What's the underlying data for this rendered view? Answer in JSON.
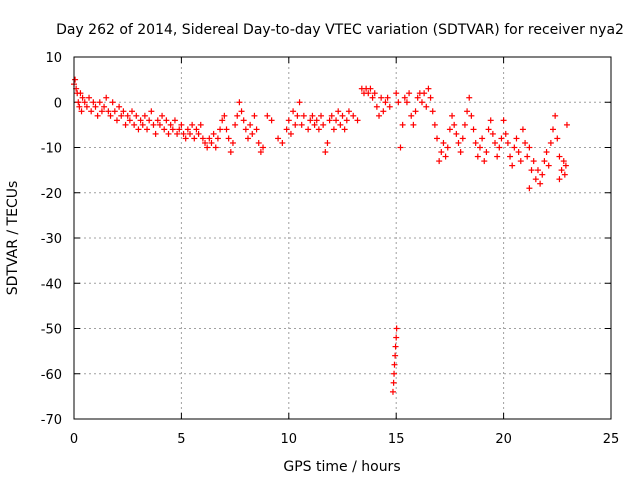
{
  "chart_data": {
    "type": "scatter",
    "title": "Day 262 of 2014, Sidereal Day-to-day VTEC variation (SDTVAR) for receiver nya2",
    "xlabel": "GPS time / hours",
    "ylabel": "SDTVAR / TECUs",
    "xlim": [
      0,
      25
    ],
    "ylim": [
      -70,
      10
    ],
    "xticks": [
      0,
      5,
      10,
      15,
      20,
      25
    ],
    "yticks": [
      10,
      0,
      -10,
      -20,
      -30,
      -40,
      -50,
      -60,
      -70
    ],
    "grid": true,
    "marker": "plus",
    "color": "#ff0000",
    "series": [
      {
        "name": "SDTVAR",
        "points": [
          [
            0.0,
            4
          ],
          [
            0.05,
            5
          ],
          [
            0.1,
            3
          ],
          [
            0.15,
            2
          ],
          [
            0.2,
            0
          ],
          [
            0.25,
            -1
          ],
          [
            0.3,
            2
          ],
          [
            0.35,
            -2
          ],
          [
            0.4,
            1
          ],
          [
            0.5,
            0
          ],
          [
            0.6,
            -1
          ],
          [
            0.7,
            1
          ],
          [
            0.8,
            -2
          ],
          [
            0.9,
            0
          ],
          [
            1.0,
            -1
          ],
          [
            1.1,
            -3
          ],
          [
            1.2,
            0
          ],
          [
            1.3,
            -2
          ],
          [
            1.4,
            -1
          ],
          [
            1.5,
            1
          ],
          [
            1.6,
            -2
          ],
          [
            1.7,
            -3
          ],
          [
            1.8,
            0
          ],
          [
            1.9,
            -2
          ],
          [
            2.0,
            -4
          ],
          [
            2.1,
            -1
          ],
          [
            2.2,
            -3
          ],
          [
            2.3,
            -2
          ],
          [
            2.4,
            -5
          ],
          [
            2.5,
            -3
          ],
          [
            2.6,
            -4
          ],
          [
            2.7,
            -2
          ],
          [
            2.8,
            -5
          ],
          [
            2.9,
            -3
          ],
          [
            3.0,
            -6
          ],
          [
            3.1,
            -4
          ],
          [
            3.2,
            -5
          ],
          [
            3.3,
            -3
          ],
          [
            3.4,
            -6
          ],
          [
            3.5,
            -4
          ],
          [
            3.6,
            -2
          ],
          [
            3.7,
            -5
          ],
          [
            3.8,
            -7
          ],
          [
            3.9,
            -4
          ],
          [
            4.0,
            -5
          ],
          [
            4.1,
            -3
          ],
          [
            4.2,
            -6
          ],
          [
            4.3,
            -4
          ],
          [
            4.4,
            -7
          ],
          [
            4.5,
            -5
          ],
          [
            4.6,
            -6
          ],
          [
            4.7,
            -4
          ],
          [
            4.8,
            -7
          ],
          [
            4.9,
            -6
          ],
          [
            5.0,
            -5
          ],
          [
            5.1,
            -7
          ],
          [
            5.2,
            -8
          ],
          [
            5.3,
            -6
          ],
          [
            5.4,
            -7
          ],
          [
            5.5,
            -5
          ],
          [
            5.6,
            -8
          ],
          [
            5.7,
            -6
          ],
          [
            5.8,
            -7
          ],
          [
            5.9,
            -5
          ],
          [
            6.0,
            -8
          ],
          [
            6.1,
            -9
          ],
          [
            6.2,
            -10
          ],
          [
            6.3,
            -8
          ],
          [
            6.4,
            -9
          ],
          [
            6.5,
            -7
          ],
          [
            6.6,
            -10
          ],
          [
            6.7,
            -8
          ],
          [
            6.8,
            -6
          ],
          [
            6.9,
            -4
          ],
          [
            7.0,
            -3
          ],
          [
            7.1,
            -6
          ],
          [
            7.2,
            -8
          ],
          [
            7.3,
            -11
          ],
          [
            7.4,
            -9
          ],
          [
            7.5,
            -5
          ],
          [
            7.6,
            -3
          ],
          [
            7.7,
            0
          ],
          [
            7.8,
            -2
          ],
          [
            7.9,
            -4
          ],
          [
            8.0,
            -6
          ],
          [
            8.1,
            -8
          ],
          [
            8.2,
            -5
          ],
          [
            8.3,
            -7
          ],
          [
            8.4,
            -3
          ],
          [
            8.5,
            -6
          ],
          [
            8.6,
            -9
          ],
          [
            8.7,
            -11
          ],
          [
            8.8,
            -10
          ],
          [
            9.0,
            -3
          ],
          [
            9.2,
            -4
          ],
          [
            9.5,
            -8
          ],
          [
            9.7,
            -9
          ],
          [
            9.9,
            -6
          ],
          [
            10.0,
            -4
          ],
          [
            10.1,
            -7
          ],
          [
            10.2,
            -2
          ],
          [
            10.3,
            -5
          ],
          [
            10.4,
            -3
          ],
          [
            10.5,
            0
          ],
          [
            10.6,
            -5
          ],
          [
            10.7,
            -3
          ],
          [
            10.9,
            -6
          ],
          [
            11.0,
            -4
          ],
          [
            11.1,
            -3
          ],
          [
            11.2,
            -5
          ],
          [
            11.3,
            -4
          ],
          [
            11.4,
            -6
          ],
          [
            11.5,
            -3
          ],
          [
            11.6,
            -5
          ],
          [
            11.7,
            -11
          ],
          [
            11.8,
            -9
          ],
          [
            11.9,
            -4
          ],
          [
            12.0,
            -3
          ],
          [
            12.1,
            -6
          ],
          [
            12.2,
            -4
          ],
          [
            12.3,
            -2
          ],
          [
            12.4,
            -5
          ],
          [
            12.5,
            -3
          ],
          [
            12.6,
            -6
          ],
          [
            12.7,
            -4
          ],
          [
            12.8,
            -2
          ],
          [
            13.0,
            -3
          ],
          [
            13.2,
            -4
          ],
          [
            13.4,
            3
          ],
          [
            13.5,
            2
          ],
          [
            13.6,
            3
          ],
          [
            13.7,
            2
          ],
          [
            13.8,
            3
          ],
          [
            13.9,
            1
          ],
          [
            14.0,
            2
          ],
          [
            14.1,
            -1
          ],
          [
            14.2,
            -3
          ],
          [
            14.3,
            1
          ],
          [
            14.4,
            -2
          ],
          [
            14.5,
            0
          ],
          [
            14.6,
            1
          ],
          [
            14.7,
            -1
          ],
          [
            14.85,
            -64
          ],
          [
            14.88,
            -62
          ],
          [
            14.9,
            -60
          ],
          [
            14.92,
            -58
          ],
          [
            14.95,
            -56
          ],
          [
            14.97,
            -54
          ],
          [
            15.0,
            -52
          ],
          [
            15.02,
            -50
          ],
          [
            15.0,
            2
          ],
          [
            15.1,
            0
          ],
          [
            15.2,
            -10
          ],
          [
            15.3,
            -5
          ],
          [
            15.4,
            1
          ],
          [
            15.5,
            0
          ],
          [
            15.6,
            2
          ],
          [
            15.7,
            -3
          ],
          [
            15.8,
            -5
          ],
          [
            15.9,
            -2
          ],
          [
            16.0,
            1
          ],
          [
            16.1,
            2
          ],
          [
            16.2,
            0
          ],
          [
            16.3,
            2
          ],
          [
            16.4,
            -1
          ],
          [
            16.5,
            3
          ],
          [
            16.6,
            1
          ],
          [
            16.7,
            -2
          ],
          [
            16.8,
            -5
          ],
          [
            16.9,
            -8
          ],
          [
            17.0,
            -13
          ],
          [
            17.1,
            -11
          ],
          [
            17.2,
            -9
          ],
          [
            17.3,
            -12
          ],
          [
            17.4,
            -10
          ],
          [
            17.5,
            -6
          ],
          [
            17.6,
            -3
          ],
          [
            17.7,
            -5
          ],
          [
            17.8,
            -7
          ],
          [
            17.9,
            -9
          ],
          [
            18.0,
            -11
          ],
          [
            18.1,
            -8
          ],
          [
            18.2,
            -5
          ],
          [
            18.3,
            -2
          ],
          [
            18.4,
            1
          ],
          [
            18.5,
            -3
          ],
          [
            18.6,
            -6
          ],
          [
            18.7,
            -9
          ],
          [
            18.8,
            -12
          ],
          [
            18.9,
            -10
          ],
          [
            19.0,
            -8
          ],
          [
            19.1,
            -13
          ],
          [
            19.2,
            -11
          ],
          [
            19.3,
            -6
          ],
          [
            19.4,
            -4
          ],
          [
            19.5,
            -7
          ],
          [
            19.6,
            -9
          ],
          [
            19.7,
            -12
          ],
          [
            19.8,
            -10
          ],
          [
            19.9,
            -8
          ],
          [
            20.0,
            -4
          ],
          [
            20.1,
            -7
          ],
          [
            20.2,
            -9
          ],
          [
            20.3,
            -12
          ],
          [
            20.4,
            -14
          ],
          [
            20.5,
            -10
          ],
          [
            20.6,
            -8
          ],
          [
            20.7,
            -11
          ],
          [
            20.8,
            -13
          ],
          [
            20.9,
            -6
          ],
          [
            21.0,
            -9
          ],
          [
            21.1,
            -12
          ],
          [
            21.2,
            -10
          ],
          [
            21.3,
            -15
          ],
          [
            21.4,
            -13
          ],
          [
            21.5,
            -17
          ],
          [
            21.6,
            -15
          ],
          [
            21.7,
            -18
          ],
          [
            21.8,
            -16
          ],
          [
            21.9,
            -13
          ],
          [
            22.0,
            -11
          ],
          [
            22.1,
            -14
          ],
          [
            22.2,
            -9
          ],
          [
            22.3,
            -6
          ],
          [
            22.4,
            -3
          ],
          [
            22.5,
            -8
          ],
          [
            22.6,
            -12
          ],
          [
            22.7,
            -15
          ],
          [
            22.8,
            -13
          ],
          [
            22.85,
            -16
          ],
          [
            22.9,
            -14
          ],
          [
            22.95,
            -5
          ],
          [
            21.2,
            -19
          ],
          [
            22.6,
            -17
          ]
        ]
      }
    ]
  }
}
